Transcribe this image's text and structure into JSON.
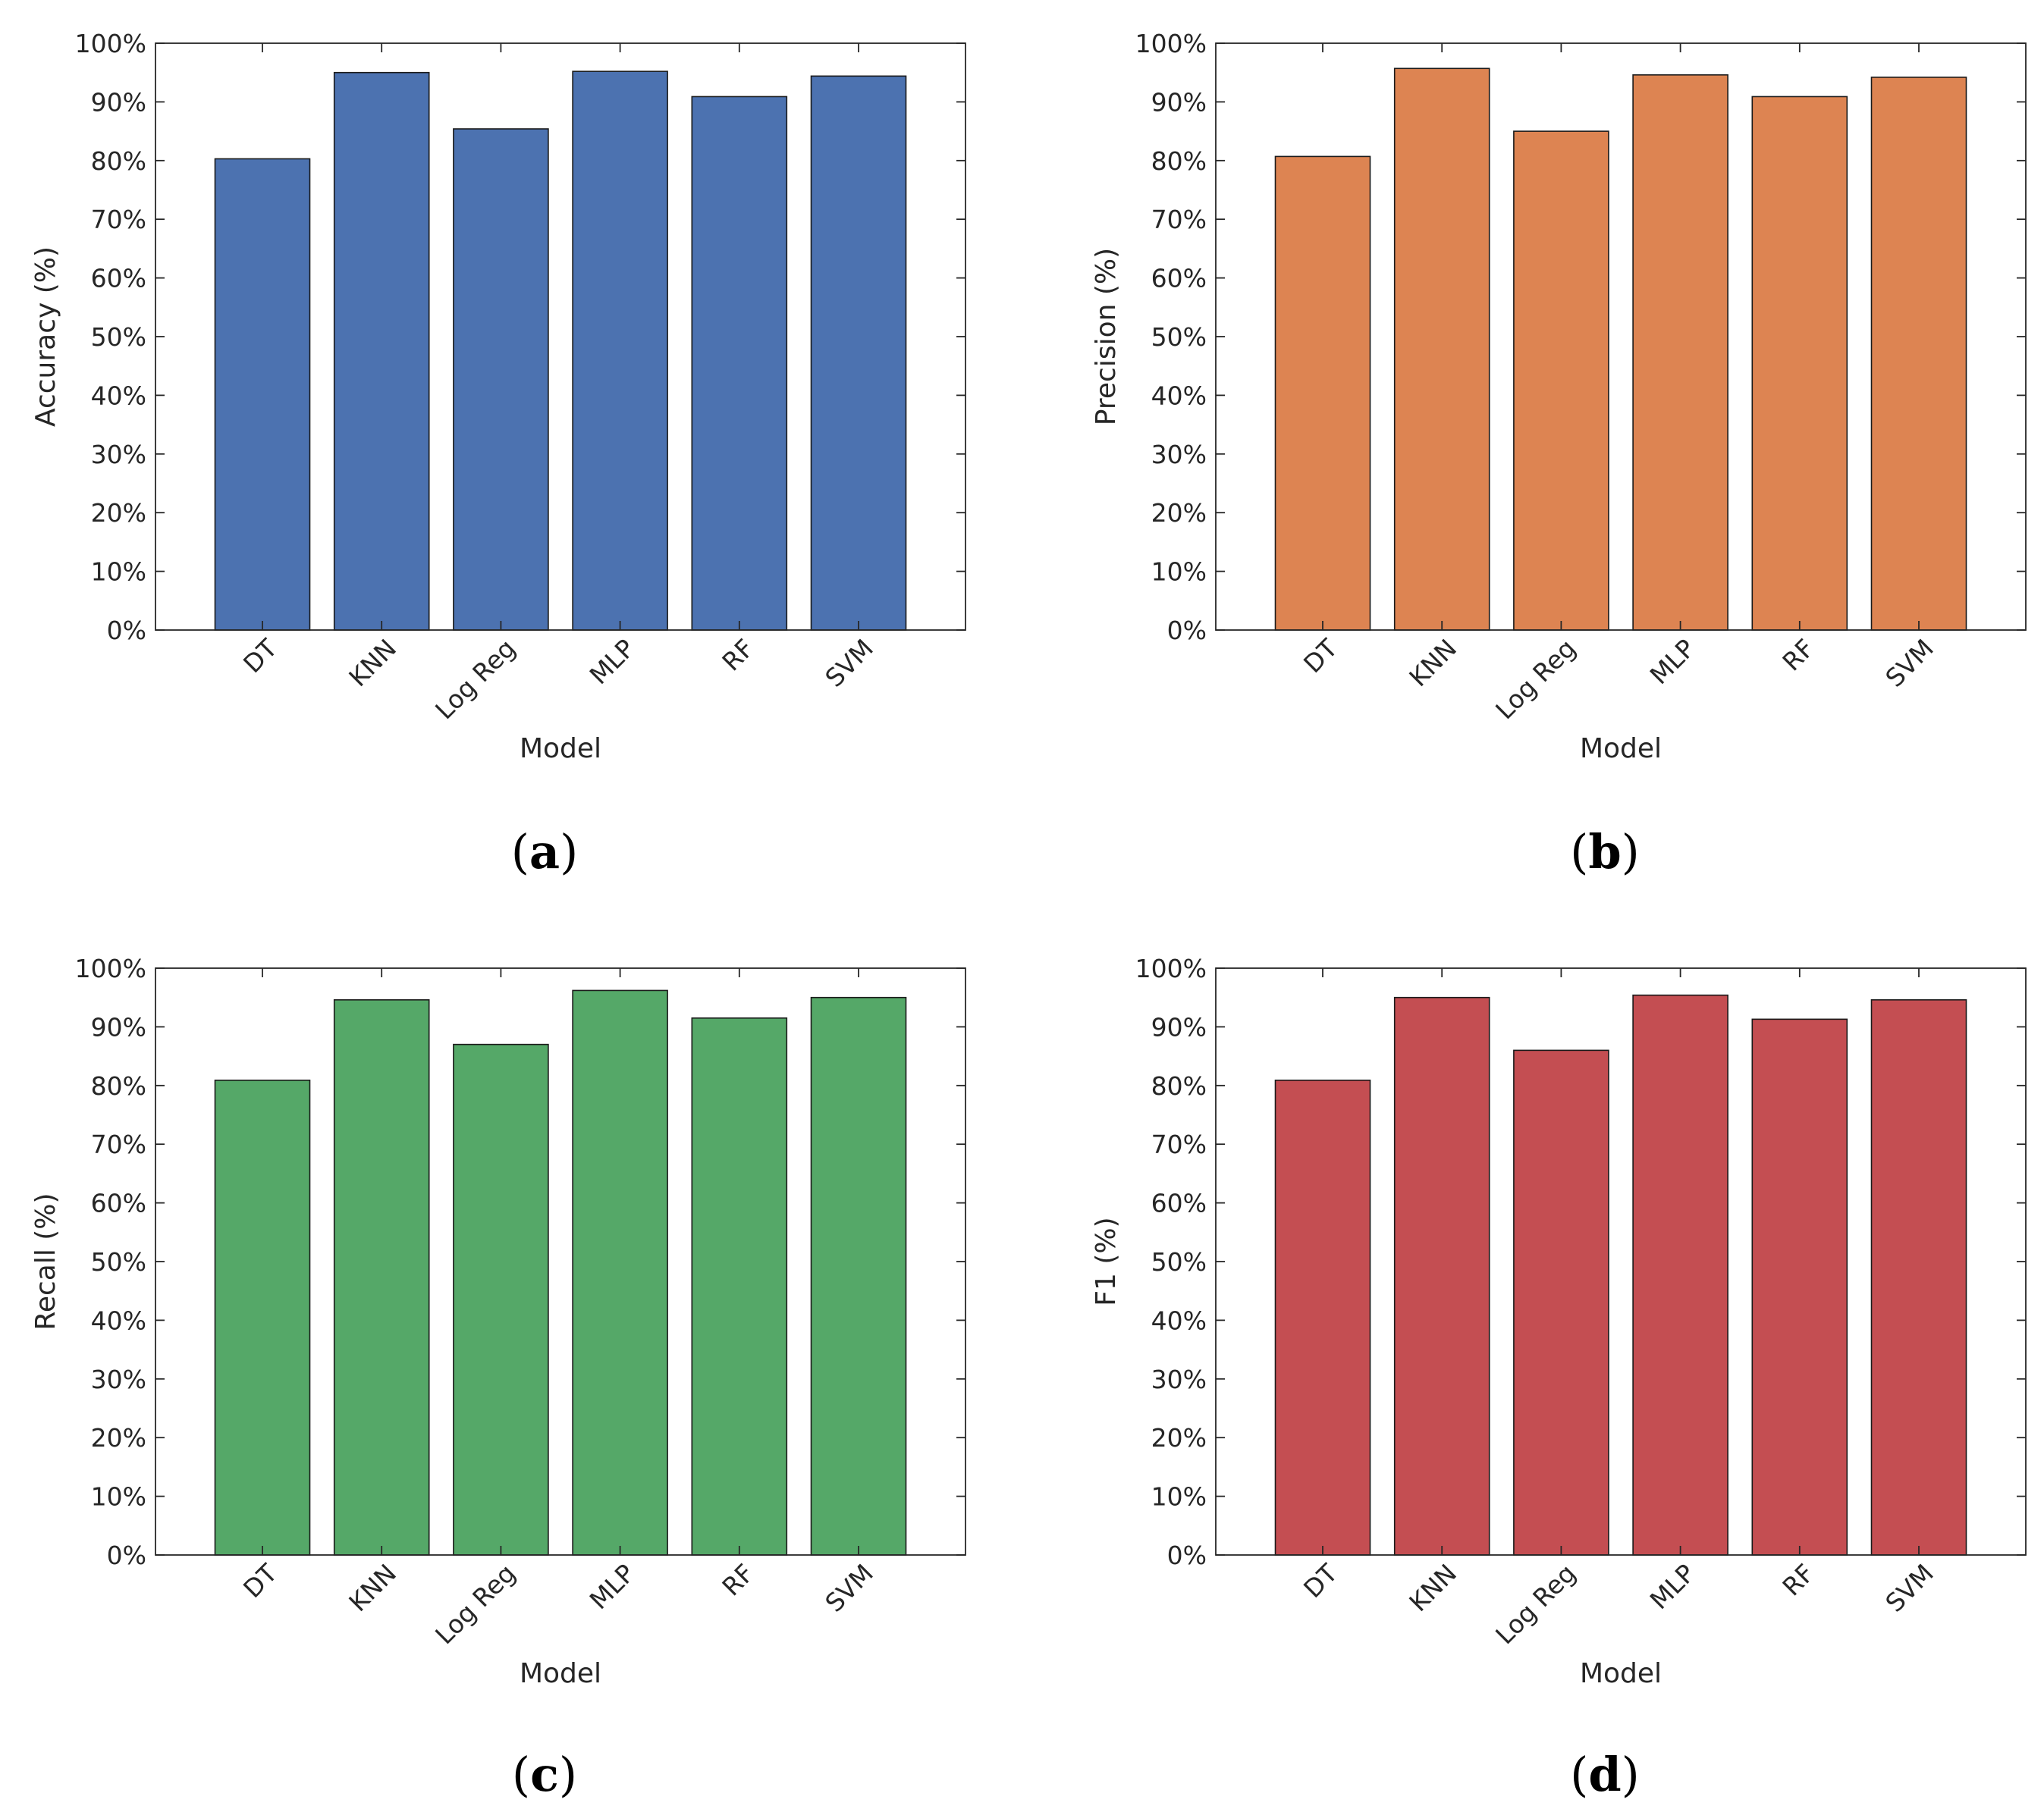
{
  "figure": {
    "panels": [
      {
        "label_open": "(",
        "label_letter": "a",
        "label_close": ")"
      },
      {
        "label_open": "(",
        "label_letter": "b",
        "label_close": ")"
      },
      {
        "label_open": "(",
        "label_letter": "c",
        "label_close": ")"
      },
      {
        "label_open": "(",
        "label_letter": "d",
        "label_close": ")"
      }
    ]
  },
  "chart_data": [
    {
      "type": "bar",
      "title": "",
      "xlabel": "Model",
      "ylabel": "Accuracy (%)",
      "categories": [
        "DT",
        "KNN",
        "Log Reg",
        "MLP",
        "RF",
        "SVM"
      ],
      "values": [
        80.3,
        95.0,
        85.4,
        95.2,
        90.9,
        94.4
      ],
      "ylim": [
        0,
        100
      ],
      "yticks": [
        "0%",
        "10%",
        "20%",
        "30%",
        "40%",
        "50%",
        "60%",
        "70%",
        "80%",
        "90%",
        "100%"
      ],
      "color": "#4c72b0",
      "grid": false
    },
    {
      "type": "bar",
      "title": "",
      "xlabel": "Model",
      "ylabel": "Precision (%)",
      "categories": [
        "DT",
        "KNN",
        "Log Reg",
        "MLP",
        "RF",
        "SVM"
      ],
      "values": [
        80.7,
        95.7,
        85.0,
        94.6,
        90.9,
        94.2
      ],
      "ylim": [
        0,
        100
      ],
      "yticks": [
        "0%",
        "10%",
        "20%",
        "30%",
        "40%",
        "50%",
        "60%",
        "70%",
        "80%",
        "90%",
        "100%"
      ],
      "color": "#dd8452",
      "grid": false
    },
    {
      "type": "bar",
      "title": "",
      "xlabel": "Model",
      "ylabel": "Recall (%)",
      "categories": [
        "DT",
        "KNN",
        "Log Reg",
        "MLP",
        "RF",
        "SVM"
      ],
      "values": [
        80.9,
        94.6,
        87.0,
        96.2,
        91.5,
        95.0
      ],
      "ylim": [
        0,
        100
      ],
      "yticks": [
        "0%",
        "10%",
        "20%",
        "30%",
        "40%",
        "50%",
        "60%",
        "70%",
        "80%",
        "90%",
        "100%"
      ],
      "color": "#55a868",
      "grid": false
    },
    {
      "type": "bar",
      "title": "",
      "xlabel": "Model",
      "ylabel": "F1 (%)",
      "categories": [
        "DT",
        "KNN",
        "Log Reg",
        "MLP",
        "RF",
        "SVM"
      ],
      "values": [
        80.9,
        95.0,
        86.0,
        95.4,
        91.3,
        94.6
      ],
      "ylim": [
        0,
        100
      ],
      "yticks": [
        "0%",
        "10%",
        "20%",
        "30%",
        "40%",
        "50%",
        "60%",
        "70%",
        "80%",
        "90%",
        "100%"
      ],
      "color": "#c44e52",
      "grid": false
    }
  ]
}
